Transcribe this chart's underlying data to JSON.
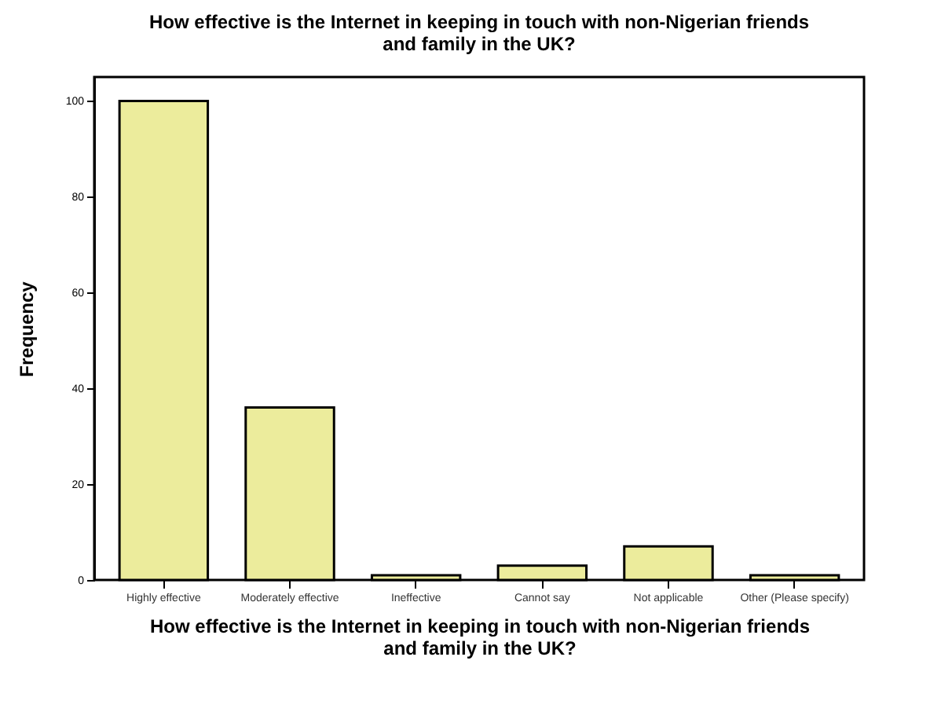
{
  "chart_data": {
    "type": "bar",
    "title": "How effective is the Internet in keeping in touch with non-Nigerian friends\nand family in the UK?",
    "xlabel": "How effective is the Internet in keeping in touch with non-Nigerian friends\nand family in the UK?",
    "ylabel": "Frequency",
    "categories": [
      "Highly effective",
      "Moderately effective",
      "Ineffective",
      "Cannot say",
      "Not applicable",
      "Other (Please specify)"
    ],
    "values": [
      100,
      36,
      1,
      3,
      7,
      1
    ],
    "color": "#ecec9c",
    "ylim": [
      0,
      105
    ],
    "yticks": [
      0,
      20,
      40,
      60,
      80,
      100
    ],
    "grid": false
  }
}
